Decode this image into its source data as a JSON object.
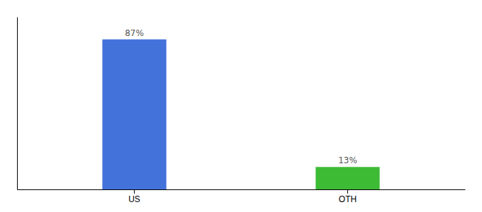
{
  "chart_data": {
    "type": "bar",
    "categories": [
      "US",
      "OTH"
    ],
    "values": [
      87,
      13
    ],
    "colors": [
      "#4472db",
      "#3dbb35"
    ],
    "value_labels": [
      "87%",
      "13%"
    ],
    "data_labels": true,
    "ylim": [
      0,
      100
    ],
    "yticks": [],
    "tick_labels": "x",
    "grid": false
  }
}
